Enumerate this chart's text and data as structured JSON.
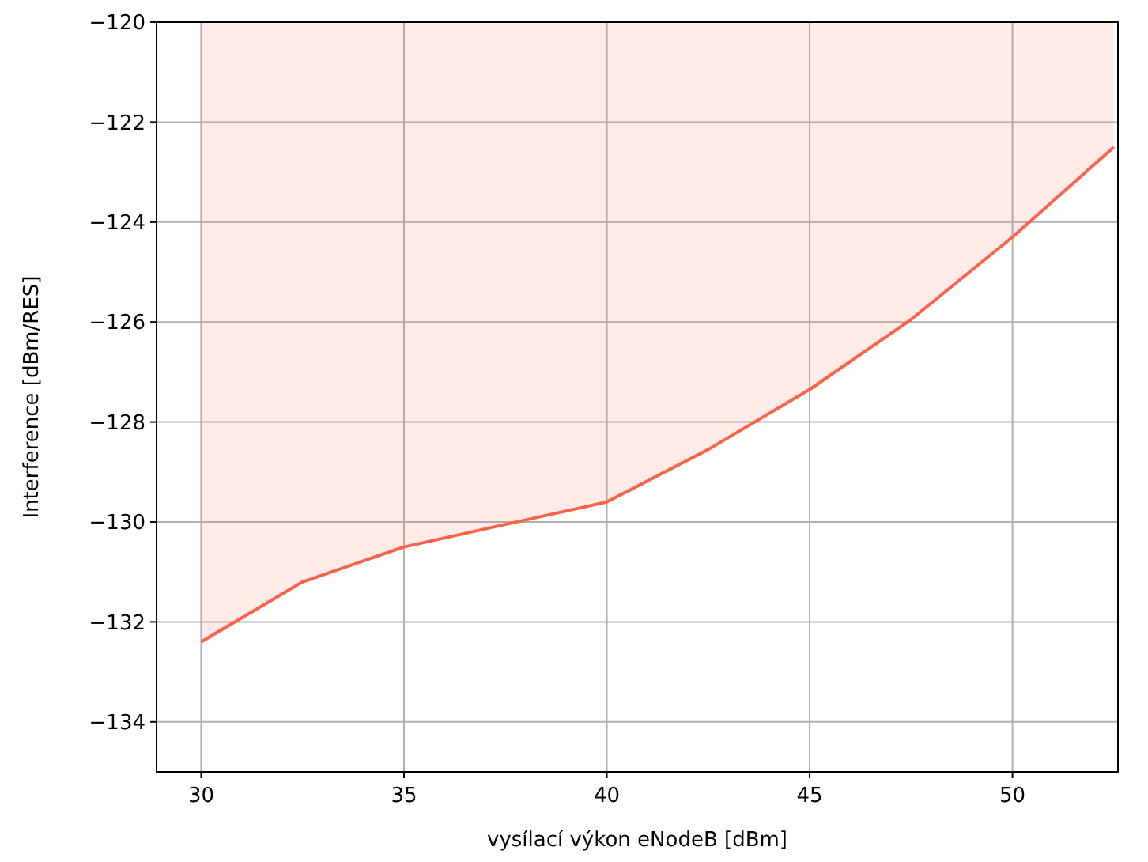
{
  "chart_data": {
    "type": "line",
    "xlabel": "vysílací výkon eNodeB [dBm]",
    "ylabel": "Interference [dBm/RES]",
    "xlim": [
      28.9,
      52.6
    ],
    "xticks": [
      30,
      35,
      40,
      45,
      50
    ],
    "ylim": [
      -135,
      -120
    ],
    "yticks": [
      {
        "value": -134,
        "label": "−134"
      },
      {
        "value": -132,
        "label": "−132"
      },
      {
        "value": -130,
        "label": "−130"
      },
      {
        "value": -128,
        "label": "−128"
      },
      {
        "value": -126,
        "label": "−126"
      },
      {
        "value": -124,
        "label": "−124"
      },
      {
        "value": -122,
        "label": "−122"
      },
      {
        "value": -120,
        "label": "−120"
      }
    ],
    "grid": true,
    "line_style": "solid",
    "marker": "none",
    "series": [
      {
        "color": "#ff6347",
        "x": [
          30,
          32.5,
          35,
          37.5,
          40,
          42.5,
          45,
          47.5,
          50,
          52.5
        ],
        "values": [
          -132.4,
          -131.2,
          -130.5,
          -130.05,
          -129.6,
          -128.55,
          -127.35,
          -125.95,
          -124.3,
          -122.5
        ],
        "lower": [
          -132.4,
          -131.2,
          -130.5,
          -130.05,
          -129.6,
          -128.55,
          -127.35,
          -125.95,
          -124.3,
          -122.5
        ],
        "upper": [
          -120,
          -120,
          -120,
          -120,
          -120,
          -120,
          -120,
          -120,
          -120,
          -120
        ]
      }
    ]
  }
}
